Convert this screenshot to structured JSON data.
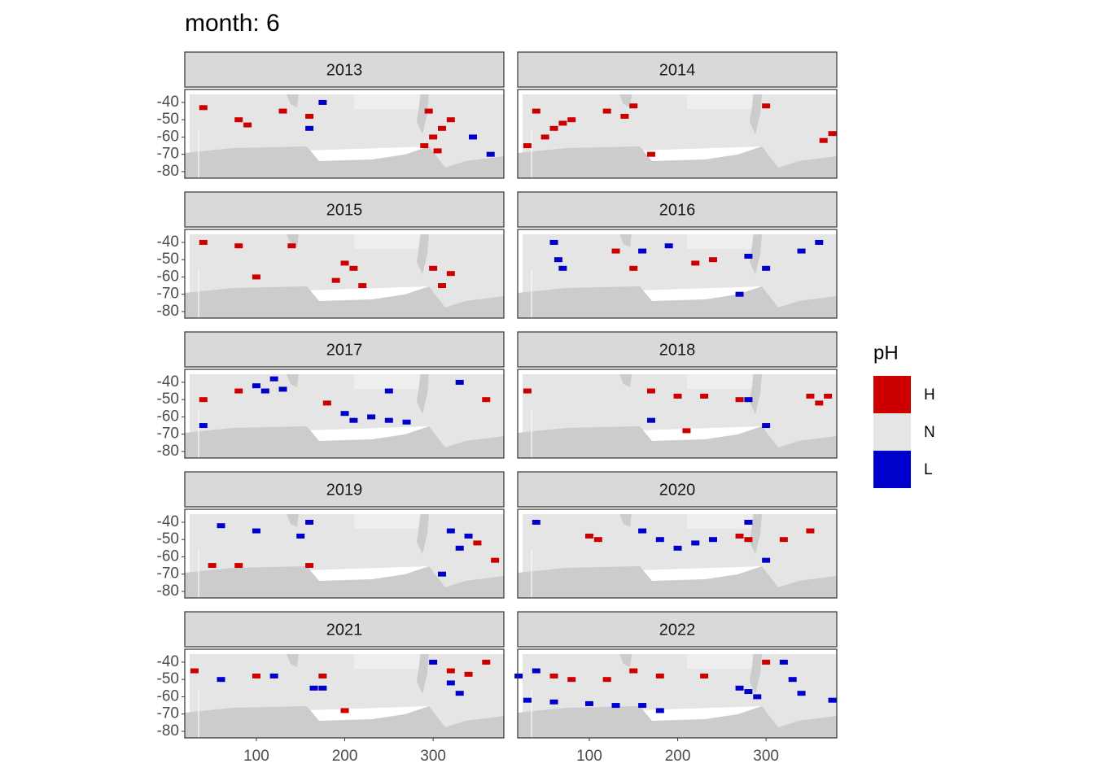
{
  "chart_data": {
    "type": "raster-facets",
    "title": "month: 6",
    "xlim": [
      19,
      380
    ],
    "ylim": [
      -83.8,
      -32.5
    ],
    "xticks": [
      100,
      200,
      300
    ],
    "yticks": [
      -40,
      -50,
      -60,
      -70,
      -80
    ],
    "legend": {
      "title": "pH",
      "items": [
        {
          "label": "H",
          "color": "#cc0000"
        },
        {
          "label": "N",
          "color": "#e5e5e5"
        },
        {
          "label": "L",
          "color": "#0000cc"
        }
      ]
    },
    "facets": [
      {
        "title": "2013",
        "cells": [
          {
            "lon": 40,
            "lat": -43,
            "pH": "H"
          },
          {
            "lon": 80,
            "lat": -50,
            "pH": "H"
          },
          {
            "lon": 90,
            "lat": -53,
            "pH": "H"
          },
          {
            "lon": 130,
            "lat": -45,
            "pH": "H"
          },
          {
            "lon": 160,
            "lat": -48,
            "pH": "H"
          },
          {
            "lon": 290,
            "lat": -65,
            "pH": "H"
          },
          {
            "lon": 300,
            "lat": -60,
            "pH": "H"
          },
          {
            "lon": 310,
            "lat": -55,
            "pH": "H"
          },
          {
            "lon": 320,
            "lat": -50,
            "pH": "H"
          },
          {
            "lon": 305,
            "lat": -68,
            "pH": "H"
          },
          {
            "lon": 295,
            "lat": -45,
            "pH": "H"
          },
          {
            "lon": 345,
            "lat": -60,
            "pH": "L"
          },
          {
            "lon": 365,
            "lat": -70,
            "pH": "L"
          },
          {
            "lon": 160,
            "lat": -55,
            "pH": "L"
          },
          {
            "lon": 175,
            "lat": -40,
            "pH": "L"
          }
        ]
      },
      {
        "title": "2014",
        "cells": [
          {
            "lon": 40,
            "lat": -45,
            "pH": "H"
          },
          {
            "lon": 60,
            "lat": -55,
            "pH": "H"
          },
          {
            "lon": 70,
            "lat": -52,
            "pH": "H"
          },
          {
            "lon": 80,
            "lat": -50,
            "pH": "H"
          },
          {
            "lon": 50,
            "lat": -60,
            "pH": "H"
          },
          {
            "lon": 30,
            "lat": -65,
            "pH": "H"
          },
          {
            "lon": 120,
            "lat": -45,
            "pH": "H"
          },
          {
            "lon": 150,
            "lat": -42,
            "pH": "H"
          },
          {
            "lon": 140,
            "lat": -48,
            "pH": "H"
          },
          {
            "lon": 170,
            "lat": -70,
            "pH": "H"
          },
          {
            "lon": 365,
            "lat": -62,
            "pH": "H"
          },
          {
            "lon": 375,
            "lat": -58,
            "pH": "H"
          },
          {
            "lon": 300,
            "lat": -42,
            "pH": "H"
          }
        ]
      },
      {
        "title": "2015",
        "cells": [
          {
            "lon": 40,
            "lat": -40,
            "pH": "H"
          },
          {
            "lon": 80,
            "lat": -42,
            "pH": "H"
          },
          {
            "lon": 100,
            "lat": -60,
            "pH": "H"
          },
          {
            "lon": 200,
            "lat": -52,
            "pH": "H"
          },
          {
            "lon": 210,
            "lat": -55,
            "pH": "H"
          },
          {
            "lon": 190,
            "lat": -62,
            "pH": "H"
          },
          {
            "lon": 220,
            "lat": -65,
            "pH": "H"
          },
          {
            "lon": 300,
            "lat": -55,
            "pH": "H"
          },
          {
            "lon": 320,
            "lat": -58,
            "pH": "H"
          },
          {
            "lon": 310,
            "lat": -65,
            "pH": "H"
          },
          {
            "lon": 140,
            "lat": -42,
            "pH": "H"
          }
        ]
      },
      {
        "title": "2016",
        "cells": [
          {
            "lon": 60,
            "lat": -40,
            "pH": "L"
          },
          {
            "lon": 70,
            "lat": -55,
            "pH": "L"
          },
          {
            "lon": 65,
            "lat": -50,
            "pH": "L"
          },
          {
            "lon": 160,
            "lat": -45,
            "pH": "L"
          },
          {
            "lon": 190,
            "lat": -42,
            "pH": "L"
          },
          {
            "lon": 280,
            "lat": -48,
            "pH": "L"
          },
          {
            "lon": 300,
            "lat": -55,
            "pH": "L"
          },
          {
            "lon": 340,
            "lat": -45,
            "pH": "L"
          },
          {
            "lon": 360,
            "lat": -40,
            "pH": "L"
          },
          {
            "lon": 270,
            "lat": -70,
            "pH": "L"
          },
          {
            "lon": 130,
            "lat": -45,
            "pH": "H"
          },
          {
            "lon": 220,
            "lat": -52,
            "pH": "H"
          },
          {
            "lon": 240,
            "lat": -50,
            "pH": "H"
          },
          {
            "lon": 150,
            "lat": -55,
            "pH": "H"
          }
        ]
      },
      {
        "title": "2017",
        "cells": [
          {
            "lon": 100,
            "lat": -42,
            "pH": "L"
          },
          {
            "lon": 110,
            "lat": -45,
            "pH": "L"
          },
          {
            "lon": 120,
            "lat": -38,
            "pH": "L"
          },
          {
            "lon": 130,
            "lat": -44,
            "pH": "L"
          },
          {
            "lon": 200,
            "lat": -58,
            "pH": "L"
          },
          {
            "lon": 210,
            "lat": -62,
            "pH": "L"
          },
          {
            "lon": 230,
            "lat": -60,
            "pH": "L"
          },
          {
            "lon": 250,
            "lat": -62,
            "pH": "L"
          },
          {
            "lon": 270,
            "lat": -63,
            "pH": "L"
          },
          {
            "lon": 40,
            "lat": -65,
            "pH": "L"
          },
          {
            "lon": 330,
            "lat": -40,
            "pH": "L"
          },
          {
            "lon": 250,
            "lat": -45,
            "pH": "L"
          },
          {
            "lon": 40,
            "lat": -50,
            "pH": "H"
          },
          {
            "lon": 80,
            "lat": -45,
            "pH": "H"
          },
          {
            "lon": 180,
            "lat": -52,
            "pH": "H"
          },
          {
            "lon": 360,
            "lat": -50,
            "pH": "H"
          }
        ]
      },
      {
        "title": "2018",
        "cells": [
          {
            "lon": 30,
            "lat": -45,
            "pH": "H"
          },
          {
            "lon": 170,
            "lat": -45,
            "pH": "H"
          },
          {
            "lon": 200,
            "lat": -48,
            "pH": "H"
          },
          {
            "lon": 230,
            "lat": -48,
            "pH": "H"
          },
          {
            "lon": 350,
            "lat": -48,
            "pH": "H"
          },
          {
            "lon": 360,
            "lat": -52,
            "pH": "H"
          },
          {
            "lon": 370,
            "lat": -48,
            "pH": "H"
          },
          {
            "lon": 210,
            "lat": -68,
            "pH": "H"
          },
          {
            "lon": 270,
            "lat": -50,
            "pH": "H"
          },
          {
            "lon": 280,
            "lat": -50,
            "pH": "L"
          },
          {
            "lon": 300,
            "lat": -65,
            "pH": "L"
          },
          {
            "lon": 170,
            "lat": -62,
            "pH": "L"
          }
        ]
      },
      {
        "title": "2019",
        "cells": [
          {
            "lon": 60,
            "lat": -42,
            "pH": "L"
          },
          {
            "lon": 100,
            "lat": -45,
            "pH": "L"
          },
          {
            "lon": 150,
            "lat": -48,
            "pH": "L"
          },
          {
            "lon": 160,
            "lat": -40,
            "pH": "L"
          },
          {
            "lon": 320,
            "lat": -45,
            "pH": "L"
          },
          {
            "lon": 330,
            "lat": -55,
            "pH": "L"
          },
          {
            "lon": 340,
            "lat": -48,
            "pH": "L"
          },
          {
            "lon": 310,
            "lat": -70,
            "pH": "L"
          },
          {
            "lon": 50,
            "lat": -65,
            "pH": "H"
          },
          {
            "lon": 80,
            "lat": -65,
            "pH": "H"
          },
          {
            "lon": 160,
            "lat": -65,
            "pH": "H"
          },
          {
            "lon": 350,
            "lat": -52,
            "pH": "H"
          },
          {
            "lon": 370,
            "lat": -62,
            "pH": "H"
          }
        ]
      },
      {
        "title": "2020",
        "cells": [
          {
            "lon": 100,
            "lat": -48,
            "pH": "H"
          },
          {
            "lon": 110,
            "lat": -50,
            "pH": "H"
          },
          {
            "lon": 270,
            "lat": -48,
            "pH": "H"
          },
          {
            "lon": 280,
            "lat": -50,
            "pH": "H"
          },
          {
            "lon": 320,
            "lat": -50,
            "pH": "H"
          },
          {
            "lon": 350,
            "lat": -45,
            "pH": "H"
          },
          {
            "lon": 40,
            "lat": -40,
            "pH": "L"
          },
          {
            "lon": 160,
            "lat": -45,
            "pH": "L"
          },
          {
            "lon": 180,
            "lat": -50,
            "pH": "L"
          },
          {
            "lon": 200,
            "lat": -55,
            "pH": "L"
          },
          {
            "lon": 220,
            "lat": -52,
            "pH": "L"
          },
          {
            "lon": 240,
            "lat": -50,
            "pH": "L"
          },
          {
            "lon": 280,
            "lat": -40,
            "pH": "L"
          },
          {
            "lon": 300,
            "lat": -62,
            "pH": "L"
          }
        ]
      },
      {
        "title": "2021",
        "cells": [
          {
            "lon": 30,
            "lat": -45,
            "pH": "H"
          },
          {
            "lon": 100,
            "lat": -48,
            "pH": "H"
          },
          {
            "lon": 175,
            "lat": -48,
            "pH": "H"
          },
          {
            "lon": 320,
            "lat": -45,
            "pH": "H"
          },
          {
            "lon": 340,
            "lat": -47,
            "pH": "H"
          },
          {
            "lon": 360,
            "lat": -40,
            "pH": "H"
          },
          {
            "lon": 200,
            "lat": -68,
            "pH": "H"
          },
          {
            "lon": 60,
            "lat": -50,
            "pH": "L"
          },
          {
            "lon": 120,
            "lat": -48,
            "pH": "L"
          },
          {
            "lon": 165,
            "lat": -55,
            "pH": "L"
          },
          {
            "lon": 175,
            "lat": -55,
            "pH": "L"
          },
          {
            "lon": 320,
            "lat": -52,
            "pH": "L"
          },
          {
            "lon": 330,
            "lat": -58,
            "pH": "L"
          },
          {
            "lon": 300,
            "lat": -40,
            "pH": "L"
          }
        ]
      },
      {
        "title": "2022",
        "cells": [
          {
            "lon": 20,
            "lat": -48,
            "pH": "L"
          },
          {
            "lon": 40,
            "lat": -45,
            "pH": "L"
          },
          {
            "lon": 30,
            "lat": -62,
            "pH": "L"
          },
          {
            "lon": 60,
            "lat": -63,
            "pH": "L"
          },
          {
            "lon": 100,
            "lat": -64,
            "pH": "L"
          },
          {
            "lon": 130,
            "lat": -65,
            "pH": "L"
          },
          {
            "lon": 160,
            "lat": -65,
            "pH": "L"
          },
          {
            "lon": 180,
            "lat": -68,
            "pH": "L"
          },
          {
            "lon": 270,
            "lat": -55,
            "pH": "L"
          },
          {
            "lon": 280,
            "lat": -57,
            "pH": "L"
          },
          {
            "lon": 290,
            "lat": -60,
            "pH": "L"
          },
          {
            "lon": 330,
            "lat": -50,
            "pH": "L"
          },
          {
            "lon": 340,
            "lat": -58,
            "pH": "L"
          },
          {
            "lon": 375,
            "lat": -62,
            "pH": "L"
          },
          {
            "lon": 320,
            "lat": -40,
            "pH": "L"
          },
          {
            "lon": 60,
            "lat": -48,
            "pH": "H"
          },
          {
            "lon": 80,
            "lat": -50,
            "pH": "H"
          },
          {
            "lon": 120,
            "lat": -50,
            "pH": "H"
          },
          {
            "lon": 150,
            "lat": -45,
            "pH": "H"
          },
          {
            "lon": 180,
            "lat": -48,
            "pH": "H"
          },
          {
            "lon": 230,
            "lat": -48,
            "pH": "H"
          },
          {
            "lon": 300,
            "lat": -40,
            "pH": "H"
          }
        ]
      }
    ]
  }
}
